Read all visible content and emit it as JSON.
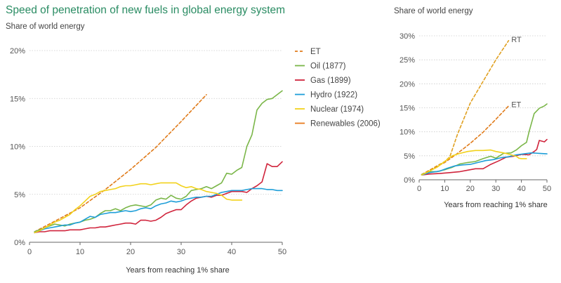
{
  "title": "Speed of penetration of new fuels in global energy system",
  "subtitle_left": "Share of world energy",
  "subtitle_right": "Share of world energy",
  "xlabel": "Years from reaching 1% share",
  "colors": {
    "ET": "#e07b1a",
    "RT": "#e0a020",
    "Oil": "#7ab648",
    "Gas": "#d0243c",
    "Hydro": "#1e9ed8",
    "Nuclear": "#f2d21c",
    "Renewables": "#e87a1e",
    "grid": "#cccccc",
    "axis": "#666666"
  },
  "chart_data": [
    {
      "type": "line",
      "xlim": [
        0,
        50
      ],
      "ylim": [
        0,
        20
      ],
      "xticks": [
        "0",
        "10",
        "20",
        "30",
        "40",
        "50"
      ],
      "yticks": [
        "0%",
        "5%",
        "10%",
        "15%",
        "20%"
      ],
      "grid": true,
      "legend": "right",
      "series": [
        {
          "name": "ET",
          "key": "ET",
          "dashed": true,
          "x": [
            1,
            5,
            10,
            15,
            20,
            25,
            30,
            35
          ],
          "y": [
            1.1,
            2.2,
            3.6,
            5.5,
            7.6,
            9.9,
            12.6,
            15.4
          ]
        },
        {
          "name": "Oil (1877)",
          "key": "Oil",
          "x": [
            1,
            2,
            3,
            4,
            5,
            6,
            7,
            8,
            9,
            10,
            11,
            12,
            13,
            14,
            15,
            16,
            17,
            18,
            19,
            20,
            21,
            22,
            23,
            24,
            25,
            26,
            27,
            28,
            29,
            30,
            31,
            32,
            33,
            34,
            35,
            36,
            37,
            38,
            39,
            40,
            41,
            42,
            43,
            44,
            45,
            46,
            47,
            48,
            49,
            50
          ],
          "y": [
            1.1,
            1.3,
            1.5,
            1.7,
            1.9,
            1.8,
            1.7,
            1.9,
            2.0,
            2.1,
            2.3,
            2.4,
            2.6,
            3.0,
            3.3,
            3.3,
            3.5,
            3.3,
            3.6,
            3.8,
            3.9,
            3.8,
            3.7,
            3.9,
            4.4,
            4.6,
            4.5,
            4.9,
            4.6,
            4.5,
            4.8,
            5.4,
            5.5,
            5.6,
            5.8,
            5.6,
            5.9,
            6.2,
            7.2,
            7.1,
            7.5,
            7.8,
            10.0,
            11.2,
            13.8,
            14.5,
            14.9,
            15.0,
            15.4,
            15.8
          ]
        },
        {
          "name": "Gas (1899)",
          "key": "Gas",
          "x": [
            1,
            2,
            3,
            4,
            5,
            6,
            7,
            8,
            9,
            10,
            11,
            12,
            13,
            14,
            15,
            16,
            17,
            18,
            19,
            20,
            21,
            22,
            23,
            24,
            25,
            26,
            27,
            28,
            29,
            30,
            31,
            32,
            33,
            34,
            35,
            36,
            37,
            38,
            39,
            40,
            41,
            42,
            43,
            44,
            45,
            46,
            47,
            48,
            49,
            50
          ],
          "y": [
            1.0,
            1.1,
            1.1,
            1.2,
            1.2,
            1.2,
            1.2,
            1.3,
            1.3,
            1.3,
            1.4,
            1.5,
            1.5,
            1.6,
            1.6,
            1.7,
            1.8,
            1.9,
            2.0,
            2.0,
            1.9,
            2.3,
            2.3,
            2.2,
            2.3,
            2.6,
            3.0,
            3.2,
            3.4,
            3.4,
            3.9,
            4.3,
            4.6,
            4.7,
            4.8,
            4.7,
            4.9,
            4.9,
            5.1,
            5.3,
            5.3,
            5.3,
            5.2,
            5.6,
            5.9,
            6.3,
            8.2,
            7.9,
            7.9,
            8.4
          ]
        },
        {
          "name": "Hydro (1922)",
          "key": "Hydro",
          "x": [
            1,
            2,
            3,
            4,
            5,
            6,
            7,
            8,
            9,
            10,
            11,
            12,
            13,
            14,
            15,
            16,
            17,
            18,
            19,
            20,
            21,
            22,
            23,
            24,
            25,
            26,
            27,
            28,
            29,
            30,
            31,
            32,
            33,
            34,
            35,
            36,
            37,
            38,
            39,
            40,
            41,
            42,
            43,
            44,
            45,
            46,
            47,
            48,
            49,
            50
          ],
          "y": [
            1.0,
            1.2,
            1.4,
            1.5,
            1.6,
            1.7,
            1.8,
            1.8,
            2.0,
            2.1,
            2.4,
            2.7,
            2.6,
            2.9,
            3.0,
            3.1,
            3.1,
            3.2,
            3.3,
            3.2,
            3.3,
            3.5,
            3.6,
            3.5,
            3.8,
            4.0,
            4.1,
            4.3,
            4.2,
            4.3,
            4.5,
            4.6,
            4.7,
            4.7,
            4.8,
            4.8,
            5.0,
            5.2,
            5.3,
            5.4,
            5.4,
            5.4,
            5.5,
            5.6,
            5.6,
            5.6,
            5.5,
            5.5,
            5.4,
            5.4
          ]
        },
        {
          "name": "Nuclear (1974)",
          "key": "Nuclear",
          "x": [
            1,
            2,
            3,
            4,
            5,
            6,
            7,
            8,
            9,
            10,
            11,
            12,
            13,
            14,
            15,
            16,
            17,
            18,
            19,
            20,
            21,
            22,
            23,
            24,
            25,
            26,
            27,
            28,
            29,
            30,
            31,
            32,
            33,
            34,
            35,
            36,
            37,
            38,
            39,
            40,
            41,
            42
          ],
          "y": [
            1.0,
            1.2,
            1.5,
            1.8,
            2.1,
            2.3,
            2.6,
            2.9,
            3.4,
            3.8,
            4.3,
            4.8,
            5.0,
            5.3,
            5.4,
            5.5,
            5.6,
            5.8,
            5.9,
            5.9,
            6.0,
            6.1,
            6.1,
            6.0,
            6.1,
            6.2,
            6.2,
            6.2,
            6.2,
            5.9,
            5.7,
            5.8,
            5.6,
            5.5,
            5.3,
            5.2,
            5.1,
            4.9,
            4.5,
            4.4,
            4.4,
            4.4
          ]
        }
      ],
      "legend_entries": [
        {
          "label": "ET",
          "key": "ET",
          "dashed": true
        },
        {
          "label": "Oil (1877)",
          "key": "Oil"
        },
        {
          "label": "Gas (1899)",
          "key": "Gas"
        },
        {
          "label": "Hydro (1922)",
          "key": "Hydro"
        },
        {
          "label": "Nuclear (1974)",
          "key": "Nuclear"
        },
        {
          "label": "Renewables (2006)",
          "key": "Renewables"
        }
      ]
    },
    {
      "type": "line",
      "xlim": [
        0,
        50
      ],
      "ylim": [
        0,
        30
      ],
      "xticks": [
        "0",
        "10",
        "20",
        "30",
        "40",
        "50"
      ],
      "yticks": [
        "0%",
        "5%",
        "10%",
        "15%",
        "20%",
        "25%",
        "30%"
      ],
      "grid": true,
      "legend": "none",
      "series": [
        {
          "name": "RT",
          "key": "RT",
          "dashed": true,
          "x": [
            1,
            5,
            10,
            12,
            15,
            20,
            25,
            30,
            35
          ],
          "y": [
            1.1,
            2.3,
            3.8,
            4.8,
            9.5,
            16.0,
            20.5,
            25.0,
            29.0
          ]
        },
        {
          "name": "ET",
          "key": "ET",
          "dashed": true,
          "x": [
            1,
            5,
            10,
            15,
            20,
            25,
            30,
            35
          ],
          "y": [
            1.1,
            2.2,
            3.6,
            5.5,
            7.6,
            9.9,
            12.6,
            15.4
          ]
        },
        {
          "key": "Oil",
          "x": [
            1,
            4,
            7,
            10,
            13,
            16,
            19,
            22,
            25,
            28,
            30,
            33,
            36,
            38,
            40,
            42,
            43,
            45,
            47,
            49,
            50
          ],
          "y": [
            1.1,
            1.7,
            1.7,
            2.1,
            2.6,
            3.3,
            3.6,
            3.8,
            4.4,
            4.9,
            4.5,
            5.5,
            5.6,
            6.2,
            7.1,
            7.8,
            10.0,
            13.8,
            14.9,
            15.4,
            15.8
          ]
        },
        {
          "key": "Gas",
          "x": [
            1,
            4,
            8,
            12,
            16,
            19,
            22,
            25,
            28,
            31,
            34,
            37,
            40,
            43,
            45,
            46,
            47,
            49,
            50
          ],
          "y": [
            1.0,
            1.2,
            1.3,
            1.5,
            1.7,
            2.0,
            2.3,
            2.3,
            3.2,
            3.9,
            4.7,
            4.9,
            5.3,
            5.2,
            5.9,
            6.3,
            8.2,
            7.9,
            8.4
          ]
        },
        {
          "key": "Hydro",
          "x": [
            1,
            4,
            8,
            11,
            14,
            17,
            20,
            23,
            26,
            29,
            32,
            35,
            38,
            41,
            44,
            47,
            50
          ],
          "y": [
            1.0,
            1.5,
            1.8,
            2.4,
            2.9,
            3.1,
            3.2,
            3.6,
            4.0,
            4.2,
            4.6,
            4.8,
            5.2,
            5.4,
            5.6,
            5.5,
            5.4
          ]
        },
        {
          "key": "Nuclear",
          "x": [
            1,
            4,
            7,
            10,
            13,
            16,
            19,
            22,
            25,
            28,
            30,
            33,
            36,
            38,
            39,
            40,
            42
          ],
          "y": [
            1.0,
            1.8,
            2.6,
            3.8,
            5.0,
            5.5,
            5.9,
            6.1,
            6.1,
            6.2,
            5.9,
            5.6,
            5.2,
            4.9,
            4.5,
            4.4,
            4.4
          ]
        }
      ],
      "labels": [
        {
          "text": "RT",
          "key": "RT",
          "x": 35.5,
          "y": 29.3
        },
        {
          "text": "ET",
          "key": "ET",
          "x": 35.5,
          "y": 15.7
        }
      ]
    }
  ]
}
